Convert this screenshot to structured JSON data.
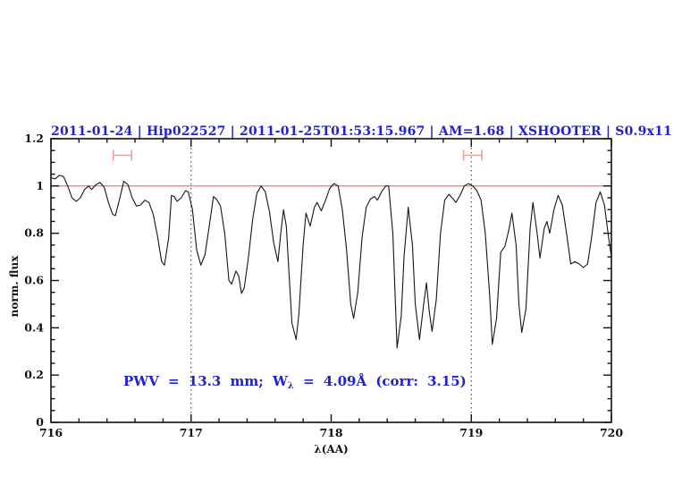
{
  "chart_data": {
    "type": "line",
    "title": "2011-01-24 | Hip022527 | 2011-01-25T01:53:15.967 | AM=1.68 | XSHOOTER | S0.9x11",
    "title_color": "#2222cc",
    "xlabel": "λ(AA)",
    "ylabel": "norm. flux",
    "xlim": [
      716,
      720
    ],
    "ylim": [
      0,
      1.2
    ],
    "grid": "off",
    "legend": "none",
    "xticks": {
      "major": [
        716,
        717,
        718,
        719,
        720
      ],
      "labels": [
        "716",
        "717",
        "718",
        "719",
        "720"
      ],
      "minor_step": 0.2
    },
    "yticks": {
      "major": [
        0,
        0.2,
        0.4,
        0.6,
        0.8,
        1,
        1.2
      ],
      "labels": [
        "0",
        "0.2",
        "0.4",
        "0.6",
        "0.8",
        "1",
        "1.2"
      ],
      "minor_step": 0.05
    },
    "reference_line": {
      "y": 1.0,
      "color": "#e06a6a"
    },
    "vlines": {
      "x": [
        717,
        719
      ],
      "style": "dotted",
      "color": "#333333"
    },
    "interval_markers": {
      "color": "#f29d9d",
      "flux_y": 1.13,
      "cap_half_height": 0.023,
      "items": [
        {
          "x_center": 716.51,
          "x_half_width": 0.065
        },
        {
          "x_center": 719.01,
          "x_half_width": 0.065
        }
      ]
    },
    "annotation": {
      "prefix": "PWV = 13.3 mm; W",
      "subscript": "λ",
      "suffix": " = 4.09Å (corr: 3.15)",
      "full": "PWV = 13.3 mm; Wλ = 4.09Å (corr: 3.15)",
      "color": "#2222cc"
    },
    "series": [
      {
        "name": "normalized spectrum",
        "color": "#151515",
        "points": [
          [
            716.0,
            1.035
          ],
          [
            716.03,
            1.03
          ],
          [
            716.06,
            1.045
          ],
          [
            716.09,
            1.04
          ],
          [
            716.12,
            1.0
          ],
          [
            716.15,
            0.95
          ],
          [
            716.18,
            0.935
          ],
          [
            716.21,
            0.95
          ],
          [
            716.24,
            0.985
          ],
          [
            716.27,
            1.0
          ],
          [
            716.29,
            0.985
          ],
          [
            716.32,
            1.005
          ],
          [
            716.35,
            1.015
          ],
          [
            716.38,
            0.995
          ],
          [
            716.41,
            0.93
          ],
          [
            716.44,
            0.88
          ],
          [
            716.46,
            0.875
          ],
          [
            716.49,
            0.945
          ],
          [
            716.52,
            1.02
          ],
          [
            716.55,
            1.005
          ],
          [
            716.58,
            0.95
          ],
          [
            716.61,
            0.915
          ],
          [
            716.64,
            0.92
          ],
          [
            716.67,
            0.94
          ],
          [
            716.7,
            0.93
          ],
          [
            716.73,
            0.88
          ],
          [
            716.76,
            0.79
          ],
          [
            716.79,
            0.68
          ],
          [
            716.81,
            0.665
          ],
          [
            716.84,
            0.78
          ],
          [
            716.86,
            0.96
          ],
          [
            716.88,
            0.955
          ],
          [
            716.9,
            0.935
          ],
          [
            716.93,
            0.95
          ],
          [
            716.96,
            0.98
          ],
          [
            716.98,
            0.975
          ],
          [
            717.01,
            0.9
          ],
          [
            717.04,
            0.73
          ],
          [
            717.07,
            0.665
          ],
          [
            717.1,
            0.71
          ],
          [
            717.13,
            0.83
          ],
          [
            717.16,
            0.955
          ],
          [
            717.18,
            0.945
          ],
          [
            717.21,
            0.915
          ],
          [
            717.24,
            0.8
          ],
          [
            717.27,
            0.6
          ],
          [
            717.29,
            0.585
          ],
          [
            717.32,
            0.64
          ],
          [
            717.34,
            0.62
          ],
          [
            717.36,
            0.545
          ],
          [
            717.38,
            0.57
          ],
          [
            717.41,
            0.7
          ],
          [
            717.44,
            0.86
          ],
          [
            717.47,
            0.97
          ],
          [
            717.5,
            1.0
          ],
          [
            717.53,
            0.975
          ],
          [
            717.56,
            0.89
          ],
          [
            717.59,
            0.76
          ],
          [
            717.62,
            0.68
          ],
          [
            717.64,
            0.8
          ],
          [
            717.66,
            0.9
          ],
          [
            717.68,
            0.83
          ],
          [
            717.7,
            0.62
          ],
          [
            717.72,
            0.42
          ],
          [
            717.75,
            0.35
          ],
          [
            717.77,
            0.46
          ],
          [
            717.8,
            0.75
          ],
          [
            717.82,
            0.885
          ],
          [
            717.85,
            0.83
          ],
          [
            717.88,
            0.91
          ],
          [
            717.9,
            0.93
          ],
          [
            717.93,
            0.895
          ],
          [
            717.96,
            0.94
          ],
          [
            717.99,
            0.99
          ],
          [
            718.02,
            1.01
          ],
          [
            718.05,
            1.0
          ],
          [
            718.08,
            0.9
          ],
          [
            718.11,
            0.73
          ],
          [
            718.14,
            0.5
          ],
          [
            718.16,
            0.44
          ],
          [
            718.19,
            0.55
          ],
          [
            718.22,
            0.78
          ],
          [
            718.25,
            0.91
          ],
          [
            718.28,
            0.945
          ],
          [
            718.31,
            0.955
          ],
          [
            718.33,
            0.94
          ],
          [
            718.36,
            0.975
          ],
          [
            718.39,
            1.0
          ],
          [
            718.41,
            1.0
          ],
          [
            718.44,
            0.8
          ],
          [
            718.47,
            0.315
          ],
          [
            718.5,
            0.45
          ],
          [
            718.52,
            0.7
          ],
          [
            718.55,
            0.91
          ],
          [
            718.58,
            0.75
          ],
          [
            718.6,
            0.5
          ],
          [
            718.63,
            0.35
          ],
          [
            718.66,
            0.5
          ],
          [
            718.68,
            0.59
          ],
          [
            718.7,
            0.47
          ],
          [
            718.72,
            0.385
          ],
          [
            718.75,
            0.52
          ],
          [
            718.78,
            0.8
          ],
          [
            718.81,
            0.94
          ],
          [
            718.84,
            0.965
          ],
          [
            718.87,
            0.945
          ],
          [
            718.89,
            0.93
          ],
          [
            718.92,
            0.96
          ],
          [
            718.95,
            1.0
          ],
          [
            718.98,
            1.01
          ],
          [
            719.01,
            1.0
          ],
          [
            719.04,
            0.98
          ],
          [
            719.07,
            0.94
          ],
          [
            719.1,
            0.8
          ],
          [
            719.13,
            0.55
          ],
          [
            719.15,
            0.33
          ],
          [
            719.18,
            0.44
          ],
          [
            719.21,
            0.72
          ],
          [
            719.24,
            0.745
          ],
          [
            719.27,
            0.82
          ],
          [
            719.29,
            0.885
          ],
          [
            719.32,
            0.75
          ],
          [
            719.34,
            0.5
          ],
          [
            719.36,
            0.38
          ],
          [
            719.39,
            0.48
          ],
          [
            719.42,
            0.82
          ],
          [
            719.44,
            0.93
          ],
          [
            719.47,
            0.8
          ],
          [
            719.49,
            0.695
          ],
          [
            719.52,
            0.82
          ],
          [
            719.54,
            0.85
          ],
          [
            719.56,
            0.8
          ],
          [
            719.59,
            0.9
          ],
          [
            719.62,
            0.96
          ],
          [
            719.65,
            0.92
          ],
          [
            719.68,
            0.8
          ],
          [
            719.71,
            0.67
          ],
          [
            719.74,
            0.68
          ],
          [
            719.77,
            0.67
          ],
          [
            719.8,
            0.655
          ],
          [
            719.83,
            0.67
          ],
          [
            719.86,
            0.79
          ],
          [
            719.89,
            0.93
          ],
          [
            719.92,
            0.975
          ],
          [
            719.95,
            0.92
          ],
          [
            719.98,
            0.78
          ],
          [
            720.0,
            0.7
          ]
        ]
      }
    ]
  }
}
